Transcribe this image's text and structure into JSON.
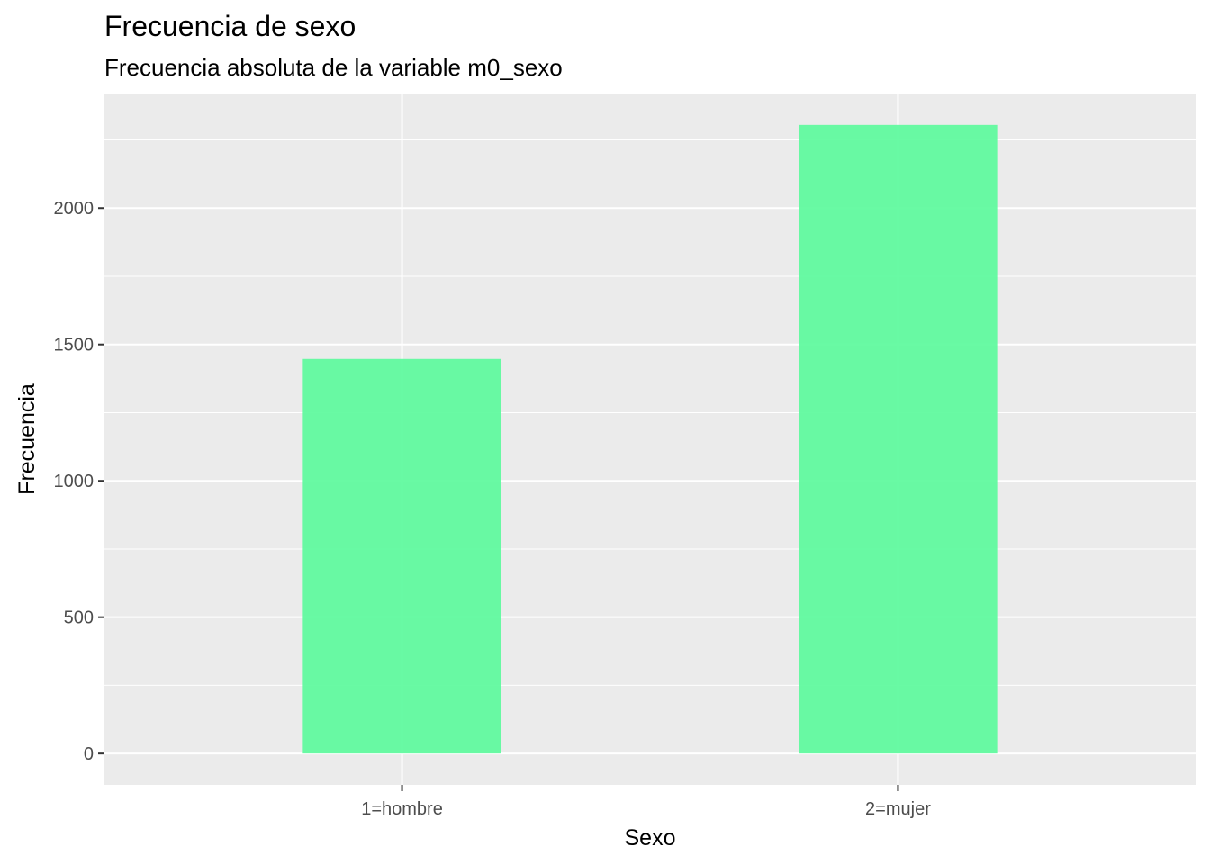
{
  "chart_data": {
    "type": "bar",
    "title": "Frecuencia de sexo",
    "subtitle": "Frecuencia absoluta de la variable m0_sexo",
    "xlabel": "Sexo",
    "ylabel": "Frecuencia",
    "categories": [
      "1=hombre",
      "2=mujer"
    ],
    "values": [
      1447,
      2305
    ],
    "ylim": [
      -115,
      2420
    ],
    "yticks": [
      0,
      500,
      1000,
      1500,
      2000
    ],
    "yticks_minor": [
      250,
      750,
      1250,
      1750,
      2250
    ],
    "grid": true,
    "bar_color": "#5CFA9C",
    "panel_background": "#EBEBEB",
    "grid_color": "#FFFFFF"
  }
}
